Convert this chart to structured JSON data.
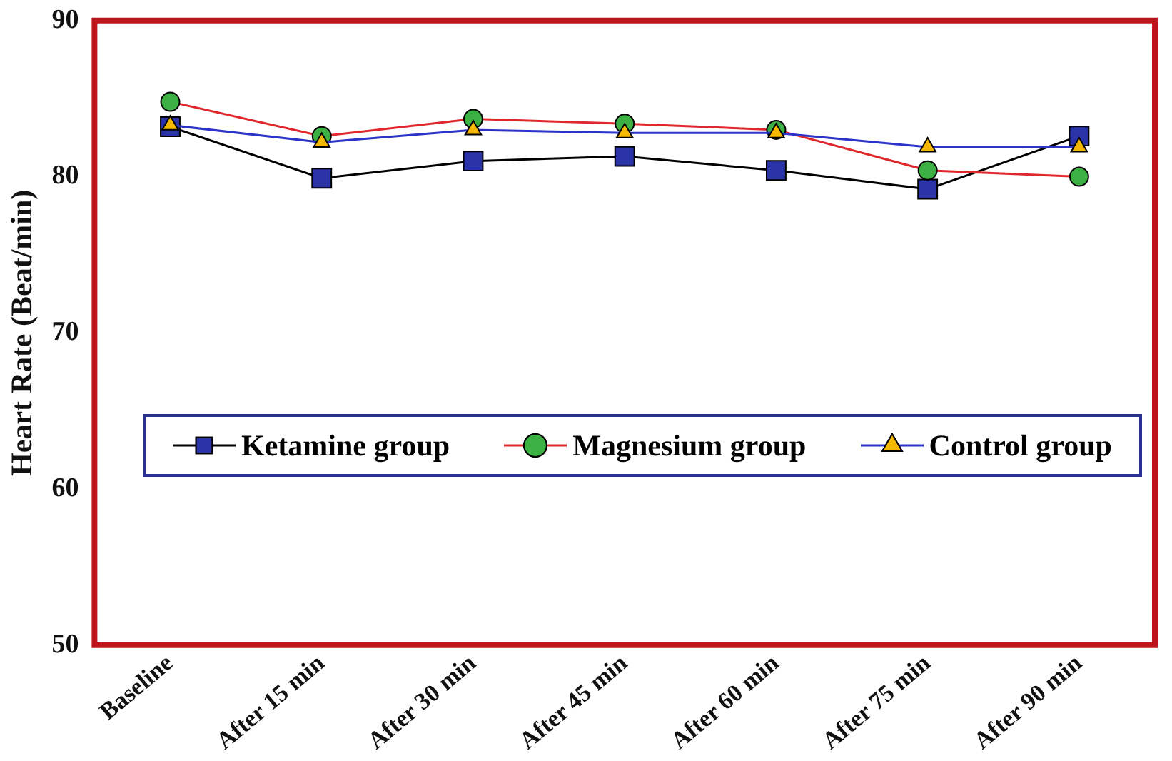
{
  "chart_data": {
    "type": "line",
    "ylabel": "Heart Rate (Beat/min)",
    "categories": [
      "Baseline",
      "After 15 min",
      "After 30 min",
      "After 45 min",
      "After 60 min",
      "After 75 min",
      "After 90 min"
    ],
    "series": [
      {
        "name": "Ketamine group",
        "color": "#000000",
        "colors": [
          "#2b33a8",
          "#2b33a8",
          "#2b33a8",
          "#2b33a8",
          "#2b33a8",
          "#2b33a8",
          "#2b33a8"
        ],
        "marker": "square",
        "values": [
          83.2,
          79.9,
          81.0,
          81.3,
          80.4,
          79.2,
          82.6
        ]
      },
      {
        "name": "Magnesium group",
        "color": "#e0282c",
        "colors": [
          "#3cb043",
          "#3cb043",
          "#3cb043",
          "#3cb043",
          "#3cb043",
          "#3cb043",
          "#3cb043"
        ],
        "marker": "circle",
        "values": [
          84.8,
          82.6,
          83.7,
          83.4,
          83.0,
          80.4,
          80.0
        ]
      },
      {
        "name": "Control group",
        "color": "#2b33c8",
        "colors": [
          "#f5b800",
          "#f5b800",
          "#f5b800",
          "#f5b800",
          "#f5b800",
          "#f5b800",
          "#f5b800"
        ],
        "marker": "triangle",
        "values": [
          83.3,
          82.2,
          83.0,
          82.8,
          82.8,
          81.9,
          81.9
        ]
      }
    ],
    "ylim": [
      50,
      90
    ],
    "yticks": [
      50,
      60,
      70,
      80,
      90
    ],
    "grid": false,
    "legend": "center"
  }
}
